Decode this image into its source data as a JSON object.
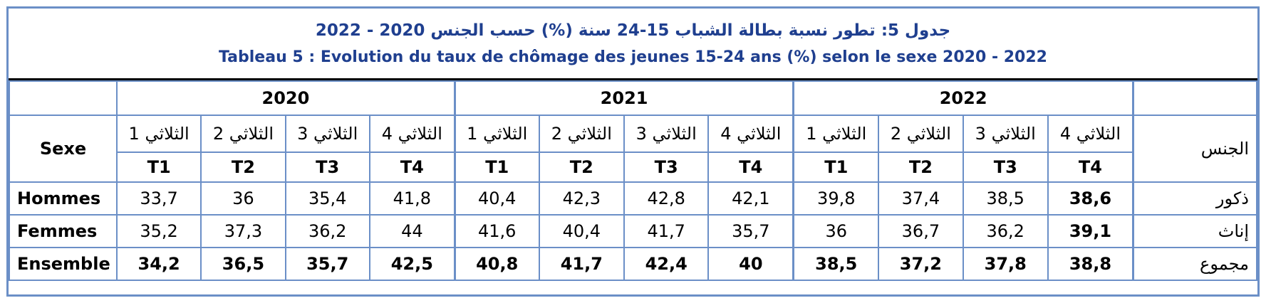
{
  "title_ar": "جدول 5: تطور نسبة بطالة الشباب 15-24 سنة (%) حسب الجنس 2020 - 2022",
  "title_fr": "Tableau 5 : Evolution du taux de chômage des jeunes 15-24 ans (%) selon le sexe 2020 - 2022",
  "header": {
    "sexe_fr": "Sexe",
    "sexe_ar": "الجنس",
    "years": [
      "2020",
      "2021",
      "2022"
    ],
    "quarters_ar": [
      "الثلاثي 1",
      "الثلاثي 2",
      "الثلاثي 3",
      "الثلاثي 4"
    ],
    "quarters": [
      "T1",
      "T2",
      "T3",
      "T4"
    ]
  },
  "rows": [
    {
      "label_fr": "Hommes",
      "label_ar": "ذكور",
      "values": [
        "33,7",
        "36",
        "35,4",
        "41,8",
        "40,4",
        "42,3",
        "42,8",
        "42,1",
        "39,8",
        "37,4",
        "38,5",
        "38,6"
      ]
    },
    {
      "label_fr": "Femmes",
      "label_ar": "إناث",
      "values": [
        "35,2",
        "37,3",
        "36,2",
        "44",
        "41,6",
        "40,4",
        "41,7",
        "35,7",
        "36",
        "36,7",
        "36,2",
        "39,1"
      ]
    },
    {
      "label_fr": "Ensemble",
      "label_ar": "مجموع",
      "values": [
        "34,2",
        "36,5",
        "35,7",
        "42,5",
        "40,8",
        "41,7",
        "42,4",
        "40",
        "38,5",
        "37,2",
        "37,8",
        "38,8"
      ]
    }
  ],
  "colors": {
    "title": "#1f3f8f",
    "border": "#6b8fc7"
  }
}
